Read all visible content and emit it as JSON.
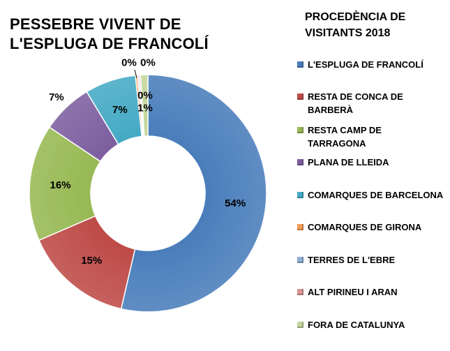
{
  "chart_data": {
    "type": "pie",
    "subtype": "donut",
    "title": [
      "PESSEBRE VIVENT DE",
      "L'ESPLUGA DE FRANCOLÍ"
    ],
    "legend_title": [
      "PROCEDÈNCIA DE",
      "VISITANTS 2018"
    ],
    "legend_position": "right",
    "slices": [
      {
        "name": "L'ESPLUGA DE FRANCOLÍ",
        "legend_lines": [
          "L'ESPLUGA DE FRANCOLÍ"
        ],
        "value": 54,
        "label": "54%",
        "color": "#4a7ebb"
      },
      {
        "name": "RESTA DE CONCA DE BARBERÀ",
        "legend_lines": [
          "RESTA DE CONCA DE",
          "BARBERÀ"
        ],
        "value": 15,
        "label": "15%",
        "color": "#be4b48"
      },
      {
        "name": "RESTA CAMP DE TARRAGONA",
        "legend_lines": [
          "RESTA CAMP DE",
          "TARRAGONA"
        ],
        "value": 16,
        "label": "16%",
        "color": "#98b954"
      },
      {
        "name": "PLANA DE LLEIDA",
        "legend_lines": [
          "PLANA DE LLEIDA"
        ],
        "value": 7,
        "label": "7%",
        "color": "#7d5fa0"
      },
      {
        "name": "COMARQUES DE BARCELONA",
        "legend_lines": [
          "COMARQUES DE BARCELONA"
        ],
        "value": 7,
        "label": "7%",
        "color": "#46aac5"
      },
      {
        "name": "COMARQUES DE GIRONA",
        "legend_lines": [
          "COMARQUES DE GIRONA"
        ],
        "value": 0.3,
        "label": "0%",
        "color": "#f59d56"
      },
      {
        "name": "TERRES DE L'EBRE",
        "legend_lines": [
          "TERRES DE L'EBRE"
        ],
        "value": 0.2,
        "label": "0%",
        "color": "#8fb0d8"
      },
      {
        "name": "ALT PIRINEU I ARAN",
        "legend_lines": [
          "ALT PIRINEU I ARAN"
        ],
        "value": 0.2,
        "label": "0%",
        "color": "#d99694"
      },
      {
        "name": "FORA DE CATALUNYA",
        "legend_lines": [
          "FORA DE CATALUNYA"
        ],
        "value": 1,
        "label": "1%",
        "color": "#c3d69b"
      }
    ]
  }
}
